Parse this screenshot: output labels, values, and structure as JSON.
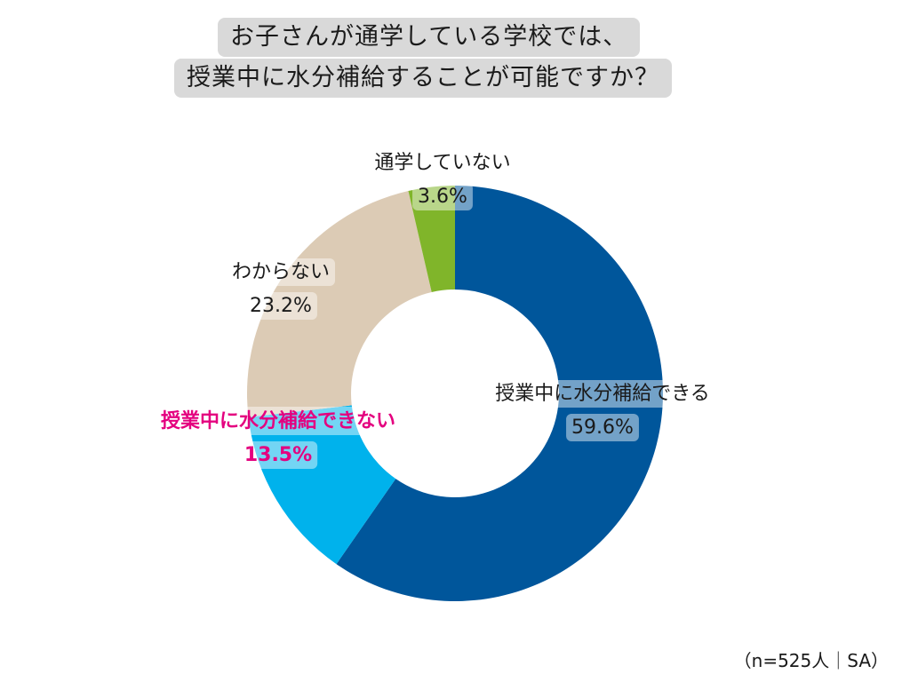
{
  "title": {
    "line1": "お子さんが通学している学校では、",
    "line2": "授業中に水分補給することが可能ですか？"
  },
  "footnote": "（n=525人｜SA）",
  "chart_data": {
    "type": "pie",
    "donut": true,
    "start_angle_deg": 0,
    "direction": "clockwise",
    "slices": [
      {
        "label": "授業中に水分補給できる",
        "value": 59.6,
        "value_text": "59.6%",
        "color": "#00569b",
        "highlight": false
      },
      {
        "label": "授業中に水分補給できない",
        "value": 13.5,
        "value_text": "13.5%",
        "color": "#00b2ec",
        "highlight": true,
        "highlight_color": "#e4007f"
      },
      {
        "label": "わからない",
        "value": 23.2,
        "value_text": "23.2%",
        "color": "#dccbb5",
        "highlight": false
      },
      {
        "label": "通学していない",
        "value": 3.6,
        "value_text": "3.6%",
        "color": "#80b52a",
        "highlight": false
      }
    ]
  }
}
